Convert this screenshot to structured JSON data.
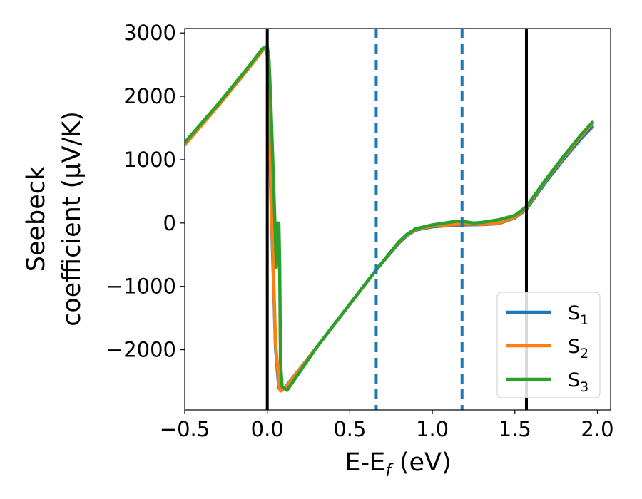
{
  "chart_data": {
    "type": "line",
    "xlabel": "E-E_f (eV)",
    "ylabel_line1": "Seebeck",
    "ylabel_line2": "coefficient  (μV/K)",
    "xlim": [
      -0.5,
      2.08
    ],
    "ylim": [
      -2950,
      3070
    ],
    "xticks": [
      -0.5,
      0.0,
      0.5,
      1.0,
      1.5,
      2.0
    ],
    "xtick_labels": [
      "−0.5",
      "0.0",
      "0.5",
      "1.0",
      "1.5",
      "2.0"
    ],
    "yticks": [
      -2000,
      -1000,
      0,
      1000,
      2000,
      3000
    ],
    "ytick_labels": [
      "−2000",
      "−1000",
      "0",
      "1000",
      "2000",
      "3000"
    ],
    "grid": false,
    "legend_placement": "lower-right",
    "vertical_lines": [
      {
        "x": 0.0,
        "style": "solid",
        "color": "#000000"
      },
      {
        "x": 1.57,
        "style": "solid",
        "color": "#000000"
      },
      {
        "x": 0.66,
        "style": "dashed",
        "color": "#1f77b4"
      },
      {
        "x": 1.18,
        "style": "dashed",
        "color": "#1f77b4"
      }
    ],
    "series": [
      {
        "name": "S1",
        "color": "#1f77b4",
        "x": [
          -0.5,
          -0.3,
          -0.1,
          -0.03,
          -0.01,
          0.0,
          0.01,
          0.02,
          0.03,
          0.04,
          0.05,
          0.06,
          0.07,
          0.08,
          0.1,
          0.3,
          0.5,
          0.66,
          0.8,
          0.85,
          0.9,
          1.0,
          1.1,
          1.18,
          1.3,
          1.4,
          1.5,
          1.57,
          1.7,
          1.8,
          1.9,
          1.97
        ],
        "y": [
          1250,
          1860,
          2500,
          2730,
          2760,
          2650,
          1800,
          600,
          -300,
          -1100,
          -1960,
          -2300,
          -2600,
          -2640,
          -2620,
          -1960,
          -1280,
          -740,
          -310,
          -190,
          -110,
          -60,
          -40,
          -30,
          -25,
          -10,
          80,
          220,
          690,
          1020,
          1330,
          1520
        ]
      },
      {
        "name": "S2",
        "color": "#ff7f0e",
        "x": [
          -0.5,
          -0.3,
          -0.1,
          -0.03,
          -0.01,
          0.0,
          0.01,
          0.02,
          0.03,
          0.04,
          0.05,
          0.06,
          0.07,
          0.08,
          0.1,
          0.3,
          0.5,
          0.66,
          0.8,
          0.85,
          0.9,
          1.0,
          1.1,
          1.18,
          1.3,
          1.4,
          1.5,
          1.57,
          1.7,
          1.8,
          1.9,
          1.97
        ],
        "y": [
          1230,
          1840,
          2480,
          2720,
          2750,
          2700,
          2000,
          700,
          -200,
          -1000,
          -1900,
          -2200,
          -2550,
          -2650,
          -2630,
          -1960,
          -1280,
          -740,
          -300,
          -180,
          -100,
          -50,
          -30,
          -15,
          -20,
          -5,
          90,
          240,
          720,
          1050,
          1370,
          1570
        ]
      },
      {
        "name": "S3",
        "color": "#2ca02c",
        "x": [
          -0.5,
          -0.3,
          -0.1,
          -0.03,
          -0.01,
          0.0,
          0.01,
          0.02,
          0.04,
          0.05,
          0.055,
          0.06,
          0.065,
          0.07,
          0.075,
          0.08,
          0.09,
          0.1,
          0.12,
          0.3,
          0.5,
          0.66,
          0.8,
          0.85,
          0.9,
          1.0,
          1.1,
          1.15,
          1.2,
          1.25,
          1.3,
          1.4,
          1.5,
          1.57,
          1.7,
          1.8,
          1.9,
          1.97
        ],
        "y": [
          1270,
          1870,
          2510,
          2750,
          2780,
          2780,
          2600,
          2000,
          500,
          -300,
          -700,
          0,
          0,
          0,
          -600,
          -2200,
          -2580,
          -2600,
          -2640,
          -1960,
          -1280,
          -740,
          -290,
          -170,
          -90,
          -30,
          10,
          30,
          20,
          0,
          10,
          50,
          120,
          260,
          730,
          1070,
          1390,
          1590
        ]
      }
    ]
  }
}
